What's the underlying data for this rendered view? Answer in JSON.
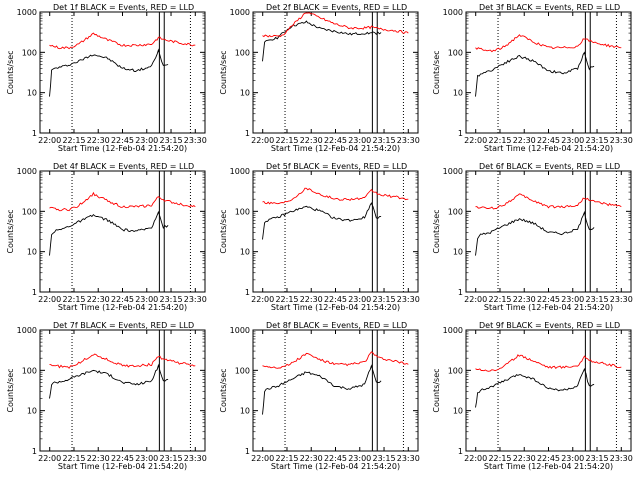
{
  "chart_data": {
    "type": "line",
    "xlabel": "Start Time (12-Feb-04 21:54:20)",
    "ylabel": "Counts/sec",
    "x_ticks": [
      "22:00",
      "22:15",
      "22:30",
      "22:45",
      "23:00",
      "23:15",
      "23:30"
    ],
    "y_ticks": [
      "1",
      "10",
      "100",
      "1000"
    ],
    "yscale": "log",
    "ylim": [
      1,
      1000
    ],
    "colors": {
      "events": "#000000",
      "lld": "#ff0000"
    },
    "panels": [
      {
        "title": "Det 1f BLACK = Events, RED = LLD",
        "series": [
          {
            "name": "Events",
            "x": [
              21.998,
              22.02,
              22.05,
              22.15,
              22.3,
              22.45,
              22.6,
              22.75,
              22.9,
              23.05,
              23.12,
              23.17,
              23.22
            ],
            "values": [
              8,
              35,
              40,
              45,
              60,
              90,
              70,
              40,
              35,
              45,
              110,
              45,
              50
            ]
          },
          {
            "name": "LLD",
            "x": [
              21.998,
              22.1,
              22.2,
              22.3,
              22.45,
              22.6,
              22.75,
              22.9,
              23.05,
              23.12,
              23.2,
              23.35,
              23.5
            ],
            "values": [
              150,
              130,
              130,
              160,
              290,
              200,
              150,
              150,
              160,
              230,
              200,
              170,
              150
            ]
          }
        ]
      },
      {
        "title": "Det 2f BLACK = Events, RED = LLD",
        "series": [
          {
            "name": "Events",
            "x": [
              21.998,
              22.02,
              22.05,
              22.15,
              22.3,
              22.45,
              22.6,
              22.75,
              22.9,
              23.05,
              23.12,
              23.17,
              23.22
            ],
            "values": [
              60,
              170,
              200,
              230,
              450,
              560,
              380,
              330,
              280,
              300,
              300,
              300,
              310
            ]
          },
          {
            "name": "LLD",
            "x": [
              21.998,
              22.1,
              22.2,
              22.3,
              22.45,
              22.6,
              22.75,
              22.9,
              23.05,
              23.12,
              23.2,
              23.35,
              23.5
            ],
            "values": [
              260,
              250,
              260,
              450,
              1000,
              700,
              500,
              400,
              400,
              420,
              380,
              350,
              300
            ]
          }
        ]
      },
      {
        "title": "Det 3f BLACK = Events, RED = LLD",
        "series": [
          {
            "name": "Events",
            "x": [
              21.998,
              22.02,
              22.05,
              22.15,
              22.3,
              22.45,
              22.6,
              22.75,
              22.9,
              23.05,
              23.12,
              23.17,
              23.22
            ],
            "values": [
              8,
              25,
              30,
              35,
              55,
              80,
              60,
              35,
              30,
              40,
              100,
              40,
              45
            ]
          },
          {
            "name": "LLD",
            "x": [
              21.998,
              22.1,
              22.2,
              22.3,
              22.45,
              22.6,
              22.75,
              22.9,
              23.05,
              23.12,
              23.2,
              23.35,
              23.5
            ],
            "values": [
              130,
              110,
              110,
              140,
              270,
              180,
              130,
              130,
              140,
              220,
              180,
              150,
              130
            ]
          }
        ]
      },
      {
        "title": "Det 4f BLACK = Events, RED = LLD",
        "series": [
          {
            "name": "Events",
            "x": [
              21.998,
              22.02,
              22.05,
              22.15,
              22.3,
              22.45,
              22.6,
              22.75,
              22.9,
              23.05,
              23.12,
              23.17,
              23.22
            ],
            "values": [
              8,
              28,
              32,
              38,
              55,
              80,
              60,
              35,
              32,
              40,
              100,
              40,
              45
            ]
          },
          {
            "name": "LLD",
            "x": [
              21.998,
              22.1,
              22.2,
              22.3,
              22.45,
              22.6,
              22.75,
              22.9,
              23.05,
              23.12,
              23.2,
              23.35,
              23.5
            ],
            "values": [
              120,
              110,
              110,
              140,
              270,
              180,
              130,
              130,
              140,
              230,
              180,
              150,
              130
            ]
          }
        ]
      },
      {
        "title": "Det 5f BLACK = Events, RED = LLD",
        "series": [
          {
            "name": "Events",
            "x": [
              21.998,
              22.02,
              22.05,
              22.15,
              22.3,
              22.45,
              22.6,
              22.75,
              22.9,
              23.05,
              23.12,
              23.17,
              23.22
            ],
            "values": [
              20,
              55,
              60,
              70,
              100,
              130,
              100,
              65,
              60,
              70,
              170,
              70,
              75
            ]
          },
          {
            "name": "LLD",
            "x": [
              21.998,
              22.1,
              22.2,
              22.3,
              22.45,
              22.6,
              22.75,
              22.9,
              23.05,
              23.12,
              23.2,
              23.35,
              23.5
            ],
            "values": [
              170,
              160,
              160,
              200,
              380,
              260,
              200,
              200,
              210,
              330,
              260,
              230,
              200
            ]
          }
        ]
      },
      {
        "title": "Det 6f BLACK = Events, RED = LLD",
        "series": [
          {
            "name": "Events",
            "x": [
              21.998,
              22.02,
              22.05,
              22.15,
              22.3,
              22.45,
              22.6,
              22.75,
              22.9,
              23.05,
              23.12,
              23.17,
              23.22
            ],
            "values": [
              8,
              22,
              26,
              30,
              45,
              65,
              50,
              30,
              28,
              36,
              90,
              36,
              40
            ]
          },
          {
            "name": "LLD",
            "x": [
              21.998,
              22.1,
              22.2,
              22.3,
              22.45,
              22.6,
              22.75,
              22.9,
              23.05,
              23.12,
              23.2,
              23.35,
              23.5
            ],
            "values": [
              130,
              120,
              120,
              150,
              260,
              180,
              130,
              130,
              140,
              220,
              180,
              150,
              130
            ]
          }
        ]
      },
      {
        "title": "Det 7f BLACK = Events, RED = LLD",
        "series": [
          {
            "name": "Events",
            "x": [
              21.998,
              22.02,
              22.05,
              22.15,
              22.3,
              22.45,
              22.6,
              22.75,
              22.9,
              23.05,
              23.12,
              23.17,
              23.22
            ],
            "values": [
              20,
              45,
              50,
              55,
              75,
              100,
              80,
              50,
              45,
              55,
              130,
              55,
              60
            ]
          },
          {
            "name": "LLD",
            "x": [
              21.998,
              22.1,
              22.2,
              22.3,
              22.45,
              22.6,
              22.75,
              22.9,
              23.05,
              23.12,
              23.2,
              23.35,
              23.5
            ],
            "values": [
              140,
              125,
              120,
              150,
              250,
              180,
              130,
              130,
              140,
              220,
              180,
              150,
              130
            ]
          }
        ]
      },
      {
        "title": "Det 8f BLACK = Events, RED = LLD",
        "series": [
          {
            "name": "Events",
            "x": [
              21.998,
              22.02,
              22.05,
              22.15,
              22.3,
              22.45,
              22.6,
              22.75,
              22.9,
              23.05,
              23.12,
              23.17,
              23.22
            ],
            "values": [
              8,
              30,
              35,
              40,
              60,
              90,
              70,
              40,
              35,
              45,
              130,
              50,
              55
            ]
          },
          {
            "name": "LLD",
            "x": [
              21.998,
              22.1,
              22.2,
              22.3,
              22.45,
              22.6,
              22.75,
              22.9,
              23.05,
              23.12,
              23.2,
              23.35,
              23.5
            ],
            "values": [
              130,
              120,
              120,
              150,
              260,
              180,
              140,
              140,
              160,
              280,
              200,
              170,
              140
            ]
          }
        ]
      },
      {
        "title": "Det 9f BLACK = Events, RED = LLD",
        "series": [
          {
            "name": "Events",
            "x": [
              21.998,
              22.02,
              22.05,
              22.15,
              22.3,
              22.45,
              22.6,
              22.75,
              22.9,
              23.05,
              23.12,
              23.17,
              23.22
            ],
            "values": [
              12,
              28,
              32,
              38,
              55,
              80,
              60,
              35,
              32,
              40,
              110,
              40,
              45
            ]
          },
          {
            "name": "LLD",
            "x": [
              21.998,
              22.1,
              22.2,
              22.3,
              22.45,
              22.6,
              22.75,
              22.9,
              23.05,
              23.12,
              23.2,
              23.35,
              23.5
            ],
            "values": [
              110,
              100,
              100,
              130,
              240,
              170,
              120,
              120,
              130,
              210,
              170,
              140,
              120
            ]
          }
        ]
      }
    ]
  }
}
